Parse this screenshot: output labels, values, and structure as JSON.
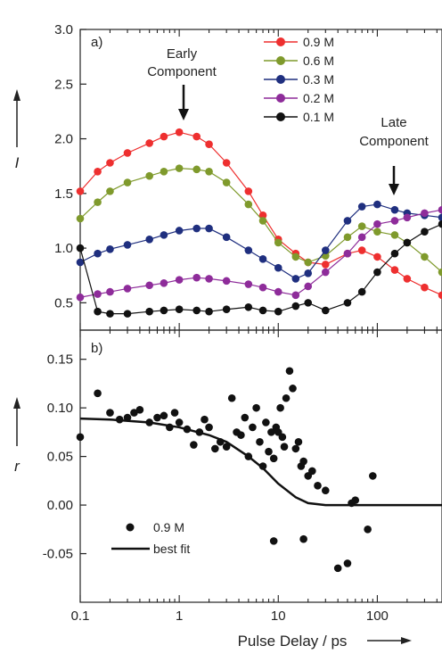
{
  "chart_data": {
    "type": "scatter",
    "x_label": "Pulse Delay / ps",
    "x_scale": "log",
    "x_ticks": [
      "0.1",
      "1",
      "10",
      "100"
    ],
    "xlim": [
      0.1,
      450
    ],
    "panels": [
      {
        "label": "a)",
        "ylabel": "I",
        "ylim": [
          0.25,
          3.0
        ],
        "y_ticks": [
          "0.5",
          "1.0",
          "1.5",
          "2.0",
          "2.5",
          "3.0"
        ],
        "annotations": [
          {
            "text": [
              "Early",
              "Component"
            ],
            "x": 1.1
          },
          {
            "text": [
              "Late",
              "Component"
            ],
            "x": 140
          }
        ],
        "legend_position": "top-right",
        "series": [
          {
            "name": "0.9 M",
            "color": "#ee2f2f",
            "x": [
              0.1,
              0.15,
              0.2,
              0.3,
              0.5,
              0.7,
              1.0,
              1.5,
              2.0,
              3.0,
              5.0,
              7.0,
              10,
              15,
              20,
              30,
              50,
              70,
              100,
              150,
              200,
              300,
              450
            ],
            "y": [
              1.52,
              1.7,
              1.78,
              1.87,
              1.96,
              2.02,
              2.06,
              2.02,
              1.95,
              1.78,
              1.52,
              1.3,
              1.08,
              0.95,
              0.87,
              0.85,
              0.95,
              0.98,
              0.92,
              0.8,
              0.72,
              0.64,
              0.57
            ]
          },
          {
            "name": "0.6 M",
            "color": "#7f9a2c",
            "x": [
              0.1,
              0.15,
              0.2,
              0.3,
              0.5,
              0.7,
              1.0,
              1.5,
              2.0,
              3.0,
              5.0,
              7.0,
              10,
              15,
              20,
              30,
              50,
              70,
              100,
              150,
              200,
              300,
              450
            ],
            "y": [
              1.27,
              1.42,
              1.52,
              1.6,
              1.66,
              1.7,
              1.73,
              1.72,
              1.7,
              1.6,
              1.4,
              1.25,
              1.05,
              0.92,
              0.87,
              0.93,
              1.1,
              1.2,
              1.15,
              1.12,
              1.05,
              0.92,
              0.78
            ]
          },
          {
            "name": "0.3 M",
            "color": "#1f2f7f",
            "x": [
              0.1,
              0.15,
              0.2,
              0.3,
              0.5,
              0.7,
              1.0,
              1.5,
              2.0,
              3.0,
              5.0,
              7.0,
              10,
              15,
              20,
              30,
              50,
              70,
              100,
              150,
              200,
              300,
              450
            ],
            "y": [
              0.87,
              0.95,
              0.99,
              1.03,
              1.08,
              1.12,
              1.16,
              1.18,
              1.18,
              1.1,
              0.98,
              0.9,
              0.82,
              0.72,
              0.77,
              0.98,
              1.25,
              1.38,
              1.4,
              1.35,
              1.32,
              1.3,
              1.28
            ]
          },
          {
            "name": "0.2 M",
            "color": "#8e2c9a",
            "x": [
              0.1,
              0.15,
              0.2,
              0.3,
              0.5,
              0.7,
              1.0,
              1.5,
              2.0,
              3.0,
              5.0,
              7.0,
              10,
              15,
              20,
              30,
              50,
              70,
              100,
              150,
              200,
              300,
              450
            ],
            "y": [
              0.55,
              0.58,
              0.6,
              0.63,
              0.66,
              0.68,
              0.71,
              0.73,
              0.72,
              0.7,
              0.67,
              0.64,
              0.6,
              0.57,
              0.65,
              0.78,
              0.95,
              1.1,
              1.22,
              1.25,
              1.28,
              1.32,
              1.35
            ]
          },
          {
            "name": "0.1 M",
            "color": "#111111",
            "x": [
              0.1,
              0.15,
              0.2,
              0.3,
              0.5,
              0.7,
              1.0,
              1.5,
              2.0,
              3.0,
              5.0,
              7.0,
              10,
              15,
              20,
              30,
              50,
              70,
              100,
              150,
              200,
              300,
              450
            ],
            "y": [
              1.0,
              0.42,
              0.4,
              0.4,
              0.42,
              0.43,
              0.44,
              0.43,
              0.42,
              0.44,
              0.46,
              0.43,
              0.42,
              0.47,
              0.5,
              0.43,
              0.5,
              0.6,
              0.78,
              0.95,
              1.05,
              1.15,
              1.22
            ]
          }
        ]
      },
      {
        "label": "b)",
        "ylabel": "r",
        "ylim": [
          -0.1,
          0.18
        ],
        "y_ticks": [
          "-0.05",
          "0.00",
          "0.05",
          "0.10",
          "0.15"
        ],
        "legend_position": "bottom-left",
        "series": [
          {
            "name": "0.9 M",
            "type": "scatter",
            "color": "#111111",
            "x": [
              0.1,
              0.15,
              0.2,
              0.25,
              0.3,
              0.35,
              0.4,
              0.5,
              0.6,
              0.7,
              0.8,
              0.9,
              1.0,
              1.2,
              1.4,
              1.6,
              1.8,
              2.0,
              2.3,
              2.6,
              3.0,
              3.4,
              3.8,
              4.2,
              4.6,
              5.0,
              5.5,
              6.0,
              6.5,
              7.0,
              7.5,
              8.0,
              8.5,
              9.0,
              9.5,
              10,
              10.5,
              11,
              11.5,
              12,
              13,
              14,
              15,
              16,
              17,
              18,
              20,
              22,
              25,
              30,
              40,
              50,
              60,
              80,
              90,
              9,
              18,
              55
            ],
            "y": [
              0.07,
              0.115,
              0.095,
              0.088,
              0.09,
              0.095,
              0.098,
              0.085,
              0.09,
              0.092,
              0.08,
              0.095,
              0.085,
              0.078,
              0.062,
              0.075,
              0.088,
              0.08,
              0.058,
              0.065,
              0.06,
              0.11,
              0.075,
              0.072,
              0.09,
              0.05,
              0.08,
              0.1,
              0.065,
              0.04,
              0.085,
              0.055,
              0.075,
              0.048,
              0.08,
              0.075,
              0.1,
              0.07,
              0.06,
              0.11,
              0.138,
              0.12,
              0.058,
              0.065,
              0.04,
              0.045,
              0.03,
              0.035,
              0.02,
              0.015,
              -0.065,
              -0.06,
              0.005,
              -0.025,
              0.03,
              -0.037,
              -0.035,
              0.002
            ]
          },
          {
            "name": "best fit",
            "type": "line",
            "color": "#111111",
            "x": [
              0.1,
              0.2,
              0.5,
              1,
              2,
              3,
              5,
              7,
              10,
              15,
              20,
              30,
              50,
              100,
              450
            ],
            "y": [
              0.089,
              0.088,
              0.085,
              0.08,
              0.072,
              0.065,
              0.05,
              0.038,
              0.022,
              0.008,
              0.002,
              0.0,
              0.0,
              0.0,
              0.0
            ]
          }
        ]
      }
    ]
  }
}
